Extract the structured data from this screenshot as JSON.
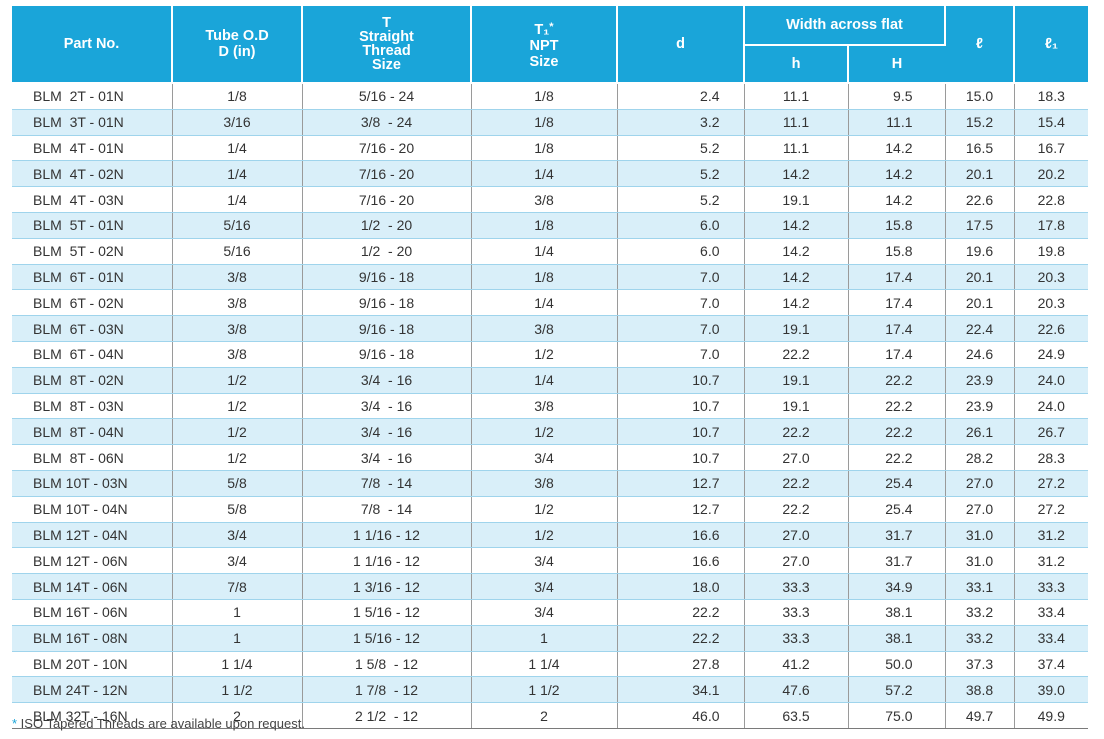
{
  "headers": {
    "part_no": "Part No.",
    "tube_od_line1": "Tube O.D",
    "tube_od_line2": "D (in)",
    "t_line1": "T",
    "t_line2": "Straight",
    "t_line3": "Thread",
    "t_line4": "Size",
    "t1_main": "T₁",
    "t1_star": "*",
    "t1_line2": "NPT",
    "t1_line3": "Size",
    "d": "d",
    "width_across_flat": "Width across flat",
    "h_small": "h",
    "H_big": "H",
    "l": "ℓ",
    "l1": "ℓ₁"
  },
  "rows": [
    {
      "part": "BLM  2T - 01N",
      "od": "1/8",
      "t": "5/16 - 24",
      "t1": "1/8",
      "d": "2.4",
      "h": "11.1",
      "H": "9.5",
      "l": "15.0",
      "l1": "18.3"
    },
    {
      "part": "BLM  3T - 01N",
      "od": "3/16",
      "t": "3/8  - 24",
      "t1": "1/8",
      "d": "3.2",
      "h": "11.1",
      "H": "11.1",
      "l": "15.2",
      "l1": "15.4"
    },
    {
      "part": "BLM  4T - 01N",
      "od": "1/4",
      "t": "7/16 - 20",
      "t1": "1/8",
      "d": "5.2",
      "h": "11.1",
      "H": "14.2",
      "l": "16.5",
      "l1": "16.7"
    },
    {
      "part": "BLM  4T - 02N",
      "od": "1/4",
      "t": "7/16 - 20",
      "t1": "1/4",
      "d": "5.2",
      "h": "14.2",
      "H": "14.2",
      "l": "20.1",
      "l1": "20.2"
    },
    {
      "part": "BLM  4T - 03N",
      "od": "1/4",
      "t": "7/16 - 20",
      "t1": "3/8",
      "d": "5.2",
      "h": "19.1",
      "H": "14.2",
      "l": "22.6",
      "l1": "22.8"
    },
    {
      "part": "BLM  5T - 01N",
      "od": "5/16",
      "t": "1/2  - 20",
      "t1": "1/8",
      "d": "6.0",
      "h": "14.2",
      "H": "15.8",
      "l": "17.5",
      "l1": "17.8"
    },
    {
      "part": "BLM  5T - 02N",
      "od": "5/16",
      "t": "1/2  - 20",
      "t1": "1/4",
      "d": "6.0",
      "h": "14.2",
      "H": "15.8",
      "l": "19.6",
      "l1": "19.8"
    },
    {
      "part": "BLM  6T - 01N",
      "od": "3/8",
      "t": "9/16 - 18",
      "t1": "1/8",
      "d": "7.0",
      "h": "14.2",
      "H": "17.4",
      "l": "20.1",
      "l1": "20.3"
    },
    {
      "part": "BLM  6T - 02N",
      "od": "3/8",
      "t": "9/16 - 18",
      "t1": "1/4",
      "d": "7.0",
      "h": "14.2",
      "H": "17.4",
      "l": "20.1",
      "l1": "20.3"
    },
    {
      "part": "BLM  6T - 03N",
      "od": "3/8",
      "t": "9/16 - 18",
      "t1": "3/8",
      "d": "7.0",
      "h": "19.1",
      "H": "17.4",
      "l": "22.4",
      "l1": "22.6"
    },
    {
      "part": "BLM  6T - 04N",
      "od": "3/8",
      "t": "9/16 - 18",
      "t1": "1/2",
      "d": "7.0",
      "h": "22.2",
      "H": "17.4",
      "l": "24.6",
      "l1": "24.9"
    },
    {
      "part": "BLM  8T - 02N",
      "od": "1/2",
      "t": "3/4  - 16",
      "t1": "1/4",
      "d": "10.7",
      "h": "19.1",
      "H": "22.2",
      "l": "23.9",
      "l1": "24.0"
    },
    {
      "part": "BLM  8T - 03N",
      "od": "1/2",
      "t": "3/4  - 16",
      "t1": "3/8",
      "d": "10.7",
      "h": "19.1",
      "H": "22.2",
      "l": "23.9",
      "l1": "24.0"
    },
    {
      "part": "BLM  8T - 04N",
      "od": "1/2",
      "t": "3/4  - 16",
      "t1": "1/2",
      "d": "10.7",
      "h": "22.2",
      "H": "22.2",
      "l": "26.1",
      "l1": "26.7"
    },
    {
      "part": "BLM  8T - 06N",
      "od": "1/2",
      "t": "3/4  - 16",
      "t1": "3/4",
      "d": "10.7",
      "h": "27.0",
      "H": "22.2",
      "l": "28.2",
      "l1": "28.3"
    },
    {
      "part": "BLM 10T - 03N",
      "od": "5/8",
      "t": "7/8  - 14",
      "t1": "3/8",
      "d": "12.7",
      "h": "22.2",
      "H": "25.4",
      "l": "27.0",
      "l1": "27.2"
    },
    {
      "part": "BLM 10T - 04N",
      "od": "5/8",
      "t": "7/8  - 14",
      "t1": "1/2",
      "d": "12.7",
      "h": "22.2",
      "H": "25.4",
      "l": "27.0",
      "l1": "27.2"
    },
    {
      "part": "BLM 12T - 04N",
      "od": "3/4",
      "t": "1 1/16 - 12",
      "t1": "1/2",
      "d": "16.6",
      "h": "27.0",
      "H": "31.7",
      "l": "31.0",
      "l1": "31.2"
    },
    {
      "part": "BLM 12T - 06N",
      "od": "3/4",
      "t": "1 1/16 - 12",
      "t1": "3/4",
      "d": "16.6",
      "h": "27.0",
      "H": "31.7",
      "l": "31.0",
      "l1": "31.2"
    },
    {
      "part": "BLM 14T - 06N",
      "od": "7/8",
      "t": "1 3/16 - 12",
      "t1": "3/4",
      "d": "18.0",
      "h": "33.3",
      "H": "34.9",
      "l": "33.1",
      "l1": "33.3"
    },
    {
      "part": "BLM 16T - 06N",
      "od": "1",
      "t": "1 5/16 - 12",
      "t1": "3/4",
      "d": "22.2",
      "h": "33.3",
      "H": "38.1",
      "l": "33.2",
      "l1": "33.4"
    },
    {
      "part": "BLM 16T - 08N",
      "od": "1",
      "t": "1 5/16 - 12",
      "t1": "1",
      "d": "22.2",
      "h": "33.3",
      "H": "38.1",
      "l": "33.2",
      "l1": "33.4"
    },
    {
      "part": "BLM 20T - 10N",
      "od": "1 1/4",
      "t": "1 5/8  - 12",
      "t1": "1 1/4",
      "d": "27.8",
      "h": "41.2",
      "H": "50.0",
      "l": "37.3",
      "l1": "37.4"
    },
    {
      "part": "BLM 24T - 12N",
      "od": "1 1/2",
      "t": "1 7/8  - 12",
      "t1": "1 1/2",
      "d": "34.1",
      "h": "47.6",
      "H": "57.2",
      "l": "38.8",
      "l1": "39.0"
    },
    {
      "part": "BLM 32T - 16N",
      "od": "2",
      "t": "2 1/2  - 12",
      "t1": "2",
      "d": "46.0",
      "h": "63.5",
      "H": "75.0",
      "l": "49.7",
      "l1": "49.9"
    }
  ],
  "footnote": {
    "star": "*",
    "text": " ISO Tapered Threads are available upon request."
  },
  "colors": {
    "header_bg": "#1aa5d9",
    "stripe": "#d9eff9"
  }
}
